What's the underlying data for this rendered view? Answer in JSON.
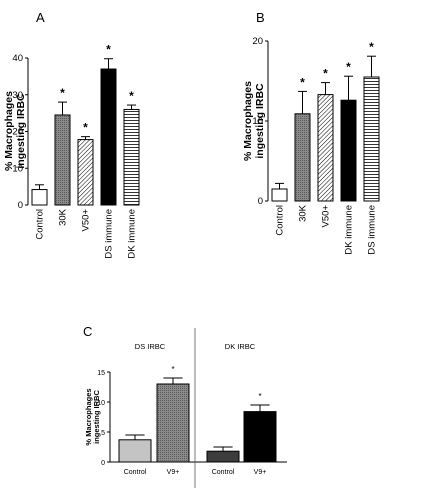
{
  "chart_data": [
    {
      "type": "bar",
      "panel": "A",
      "ylabel": "% Macrophages ingesting IRBC",
      "ylim": [
        0,
        40
      ],
      "yticks": [
        "0",
        "10",
        "20",
        "30",
        "40"
      ],
      "categories": [
        "Control",
        "30K",
        "V50+",
        "DS immune",
        "DK immune"
      ],
      "values": [
        4.2,
        24.5,
        17.8,
        37,
        26
      ],
      "errors": [
        1.3,
        3.5,
        0.8,
        2.8,
        1.2
      ],
      "significance": [
        "",
        "*",
        "*",
        "*",
        "*"
      ],
      "fills": [
        "white",
        "dots-gray",
        "diagonal",
        "black",
        "horizontal"
      ]
    },
    {
      "type": "bar",
      "panel": "B",
      "ylabel": "% Macrophages ingesting IRBC",
      "ylim": [
        0,
        20
      ],
      "yticks": [
        "0",
        "10",
        "20"
      ],
      "categories": [
        "Control",
        "30K",
        "V50+",
        "DK immune",
        "DS immune"
      ],
      "values": [
        1.5,
        10.9,
        13.3,
        12.6,
        15.5
      ],
      "errors": [
        0.7,
        2.8,
        1.5,
        3.0,
        2.6
      ],
      "significance": [
        "",
        "*",
        "*",
        "*",
        "*"
      ],
      "fills": [
        "white",
        "dots-gray",
        "diagonal",
        "black",
        "horizontal"
      ]
    },
    {
      "type": "bar",
      "panel": "C",
      "ylabel": "% Macrophages ingesting IRBC",
      "ylim": [
        0,
        15
      ],
      "yticks": [
        "0",
        "5",
        "10",
        "15"
      ],
      "groups": [
        "DS IRBC",
        "DK IRBC"
      ],
      "categories": [
        "Control",
        "V9+",
        "Control",
        "V9+"
      ],
      "values": [
        3.7,
        13,
        1.8,
        8.4
      ],
      "errors": [
        0.8,
        1.0,
        0.7,
        1.1
      ],
      "significance": [
        "",
        "*",
        "",
        "*"
      ],
      "fills": [
        "light-gray",
        "dots-gray",
        "dark-gray",
        "black"
      ]
    }
  ]
}
